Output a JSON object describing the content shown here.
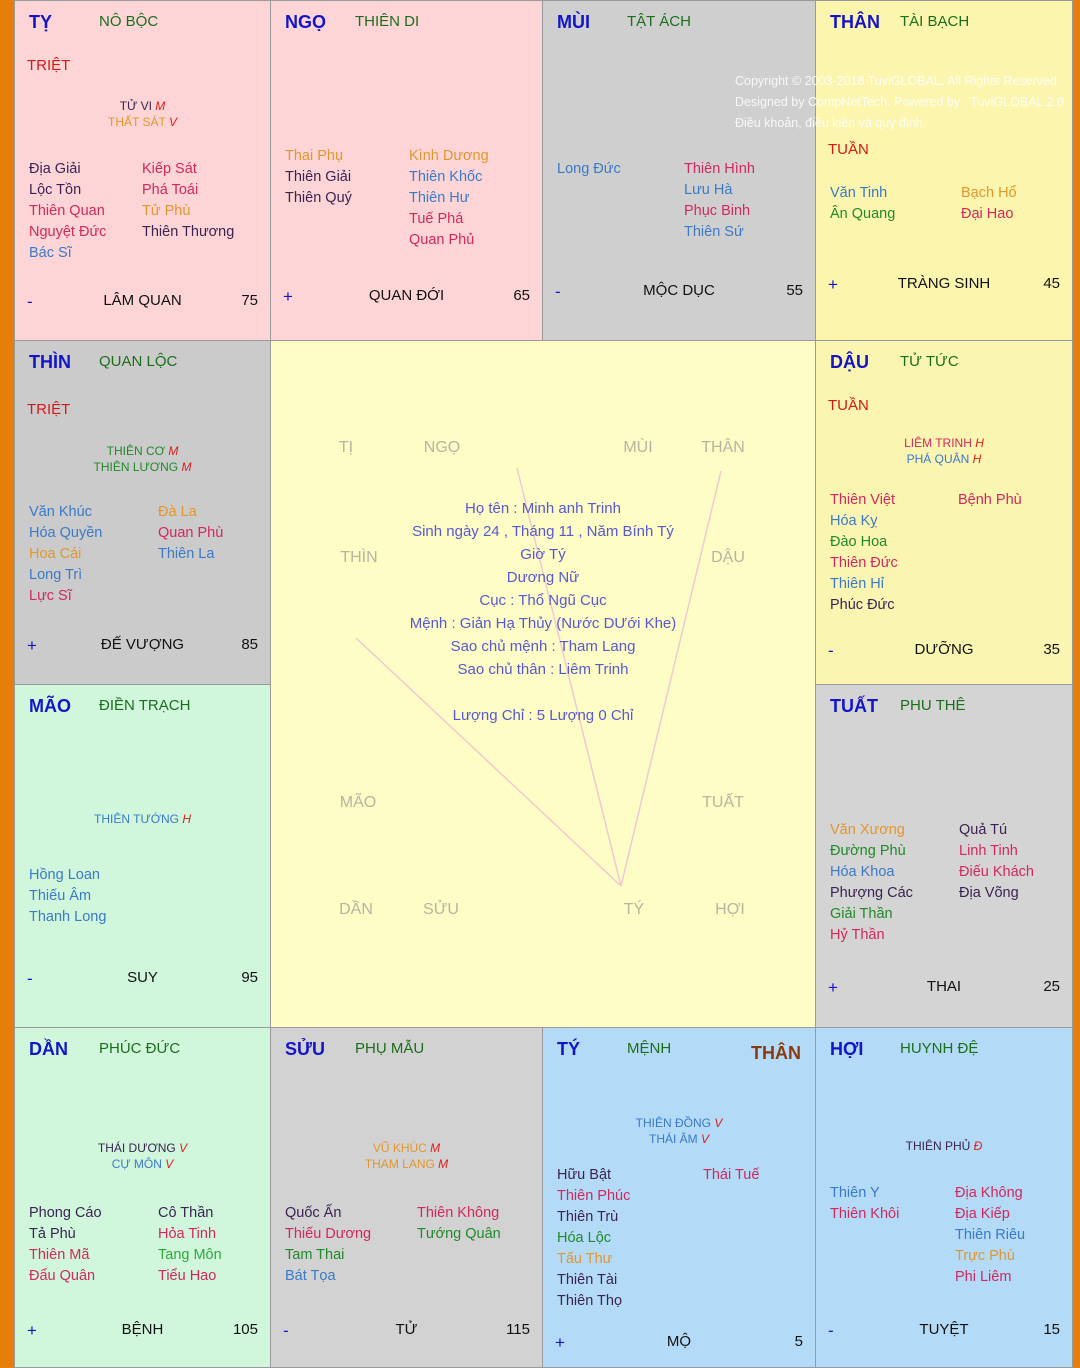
{
  "palette": {
    "k": "#3b2352",
    "r": "#d2285e",
    "o": "#e0972e",
    "b": "#3a7ac8",
    "g": "#1f8a2a",
    "lg": "#2fa83a"
  },
  "cells": [
    {
      "id": "ty-snake",
      "branch": "TỴ",
      "palace": "NÔ BỘC",
      "tag": "TRIỆT",
      "major": [
        {
          "name": "TỬ VI",
          "q": "M",
          "c": "k"
        },
        {
          "name": "THẤT SÁT",
          "q": "V",
          "c": "o"
        }
      ],
      "left": [
        {
          "name": "Địa Giải",
          "c": "k"
        },
        {
          "name": "Lộc Tồn",
          "c": "k"
        },
        {
          "name": "Thiên Quan",
          "c": "r"
        },
        {
          "name": "Nguyệt Đức",
          "c": "r"
        },
        {
          "name": "Bác Sĩ",
          "c": "b"
        }
      ],
      "right": [
        {
          "name": "Kiếp Sát",
          "c": "r"
        },
        {
          "name": "Phá Toái",
          "c": "r"
        },
        {
          "name": "Tử Phù",
          "c": "o"
        },
        {
          "name": "Thiên Thương",
          "c": "k"
        }
      ],
      "sign": "-",
      "stage": "LÂM QUAN",
      "num": "75"
    },
    {
      "id": "ngo",
      "branch": "NGỌ",
      "palace": "THIÊN DI",
      "major": [],
      "left": [
        {
          "name": "Thai Phụ",
          "c": "o"
        },
        {
          "name": "Thiên Giải",
          "c": "k"
        },
        {
          "name": "Thiên Quý",
          "c": "k"
        }
      ],
      "right": [
        {
          "name": "Kình Dương",
          "c": "o"
        },
        {
          "name": "Thiên Khốc",
          "c": "b"
        },
        {
          "name": "Thiên Hư",
          "c": "b"
        },
        {
          "name": "Tuế Phá",
          "c": "r"
        },
        {
          "name": "Quan Phủ",
          "c": "r"
        }
      ],
      "sign": "+",
      "stage": "QUAN ĐỚI",
      "num": "65"
    },
    {
      "id": "mui",
      "branch": "MÙI",
      "palace": "TẬT ÁCH",
      "major": [],
      "left": [
        {
          "name": "Long Đức",
          "c": "b"
        }
      ],
      "right": [
        {
          "name": "Thiên Hình",
          "c": "r"
        },
        {
          "name": "Lưu Hà",
          "c": "b"
        },
        {
          "name": "Phục Binh",
          "c": "r"
        },
        {
          "name": "Thiên Sứ",
          "c": "b"
        }
      ],
      "sign": "-",
      "stage": "MỘC DỤC",
      "num": "55"
    },
    {
      "id": "than",
      "branch": "THÂN",
      "palace": "TÀI BẠCH",
      "tag": "TUẦN",
      "major": [],
      "left": [
        {
          "name": "Văn Tinh",
          "c": "b"
        },
        {
          "name": "Ân Quang",
          "c": "g"
        }
      ],
      "right": [
        {
          "name": "Bạch Hổ",
          "c": "o"
        },
        {
          "name": "Đại Hao",
          "c": "r"
        }
      ],
      "sign": "+",
      "stage": "TRÀNG SINH",
      "num": "45"
    },
    {
      "id": "thin",
      "branch": "THÌN",
      "palace": "QUAN LỘC",
      "tag": "TRIỆT",
      "major": [
        {
          "name": "THIÊN CƠ",
          "q": "M",
          "c": "g"
        },
        {
          "name": "THIÊN LƯƠNG",
          "q": "M",
          "c": "g"
        }
      ],
      "left": [
        {
          "name": "Văn Khúc",
          "c": "b"
        },
        {
          "name": "Hóa Quyền",
          "c": "b"
        },
        {
          "name": "Hoa Cái",
          "c": "o"
        },
        {
          "name": "Long Trì",
          "c": "b"
        },
        {
          "name": "Lực Sĩ",
          "c": "r"
        }
      ],
      "right": [
        {
          "name": "Đà La",
          "c": "o"
        },
        {
          "name": "Quan Phù",
          "c": "r"
        },
        {
          "name": "Thiên La",
          "c": "b"
        }
      ],
      "sign": "+",
      "stage": "ĐẾ VƯỢNG",
      "num": "85"
    },
    {
      "id": "dau",
      "branch": "DẬU",
      "palace": "TỬ TỨC",
      "tag": "TUẦN",
      "major": [
        {
          "name": "LIÊM TRINH",
          "q": "H",
          "c": "r"
        },
        {
          "name": "PHÁ QUÂN",
          "q": "H",
          "c": "b"
        }
      ],
      "left": [
        {
          "name": "Thiên Việt",
          "c": "r"
        },
        {
          "name": "Hóa Kỵ",
          "c": "b"
        },
        {
          "name": "Đào Hoa",
          "c": "g"
        },
        {
          "name": "Thiên Đức",
          "c": "r"
        },
        {
          "name": "Thiên Hỉ",
          "c": "b"
        },
        {
          "name": "Phúc Đức",
          "c": "k"
        }
      ],
      "right": [
        {
          "name": "Bệnh Phù",
          "c": "r"
        }
      ],
      "sign": "-",
      "stage": "DƯỠNG",
      "num": "35"
    },
    {
      "id": "mao",
      "branch": "MÃO",
      "palace": "ĐIỀN TRẠCH",
      "major": [
        {
          "name": "THIÊN TƯỚNG",
          "q": "H",
          "c": "b"
        }
      ],
      "left": [
        {
          "name": "Hồng Loan",
          "c": "b"
        },
        {
          "name": "Thiếu Âm",
          "c": "b"
        },
        {
          "name": "Thanh Long",
          "c": "b"
        }
      ],
      "right": [],
      "sign": "-",
      "stage": "SUY",
      "num": "95"
    },
    {
      "id": "tuat",
      "branch": "TUẤT",
      "palace": "PHU THÊ",
      "major": [],
      "left": [
        {
          "name": "Văn Xương",
          "c": "o"
        },
        {
          "name": "Đường Phù",
          "c": "g"
        },
        {
          "name": "Hóa Khoa",
          "c": "b"
        },
        {
          "name": "Phượng Các",
          "c": "k"
        },
        {
          "name": "Giải Thần",
          "c": "g"
        },
        {
          "name": "Hỷ Thần",
          "c": "r"
        }
      ],
      "right": [
        {
          "name": "Quả Tú",
          "c": "k"
        },
        {
          "name": "Linh Tinh",
          "c": "r"
        },
        {
          "name": "Điếu Khách",
          "c": "r"
        },
        {
          "name": "Địa Võng",
          "c": "k"
        }
      ],
      "sign": "+",
      "stage": "THAI",
      "num": "25"
    },
    {
      "id": "dan",
      "branch": "DẦN",
      "palace": "PHÚC ĐỨC",
      "major": [
        {
          "name": "THÁI DƯƠNG",
          "q": "V",
          "c": "k"
        },
        {
          "name": "CỰ MÔN",
          "q": "V",
          "c": "b"
        }
      ],
      "left": [
        {
          "name": "Phong Cáo",
          "c": "k"
        },
        {
          "name": "Tả Phù",
          "c": "k"
        },
        {
          "name": "Thiên Mã",
          "c": "r"
        },
        {
          "name": "Đẩu Quân",
          "c": "r"
        }
      ],
      "right": [
        {
          "name": "Cô Thần",
          "c": "k"
        },
        {
          "name": "Hỏa Tinh",
          "c": "r"
        },
        {
          "name": "Tang Môn",
          "c": "lg"
        },
        {
          "name": "Tiểu Hao",
          "c": "r"
        }
      ],
      "sign": "+",
      "stage": "BỆNH",
      "num": "105"
    },
    {
      "id": "suu",
      "branch": "SỬU",
      "palace": "PHỤ MẪU",
      "major": [
        {
          "name": "VŨ KHÚC",
          "q": "M",
          "c": "o"
        },
        {
          "name": "THAM LANG",
          "q": "M",
          "c": "o"
        }
      ],
      "left": [
        {
          "name": "Quốc Ấn",
          "c": "k"
        },
        {
          "name": "Thiếu Dương",
          "c": "r"
        },
        {
          "name": "Tam Thai",
          "c": "g"
        },
        {
          "name": "Bát Tọa",
          "c": "b"
        }
      ],
      "right": [
        {
          "name": "Thiên Không",
          "c": "r"
        },
        {
          "name": "Tướng Quân",
          "c": "g"
        }
      ],
      "sign": "-",
      "stage": "TỬ",
      "num": "115"
    },
    {
      "id": "ty-rat",
      "branch": "TÝ",
      "palace": "MỆNH",
      "extra": "THÂN",
      "major": [
        {
          "name": "THIÊN ĐỒNG",
          "q": "V",
          "c": "b"
        },
        {
          "name": "THÁI ÂM",
          "q": "V",
          "c": "b"
        }
      ],
      "left": [
        {
          "name": "Hữu Bật",
          "c": "k"
        },
        {
          "name": "Thiên Phúc",
          "c": "r"
        },
        {
          "name": "Thiên Trù",
          "c": "k"
        },
        {
          "name": "Hóa Lộc",
          "c": "g"
        },
        {
          "name": "Tấu Thư",
          "c": "o"
        },
        {
          "name": "Thiên Tài",
          "c": "k"
        },
        {
          "name": "Thiên Thọ",
          "c": "k"
        }
      ],
      "right": [
        {
          "name": "Thái Tuế",
          "c": "r"
        }
      ],
      "sign": "+",
      "stage": "MỘ",
      "num": "5"
    },
    {
      "id": "hoi",
      "branch": "HỢI",
      "palace": "HUYNH ĐỆ",
      "major": [
        {
          "name": "THIÊN PHỦ",
          "q": "Đ",
          "c": "k"
        }
      ],
      "left": [
        {
          "name": "Thiên Y",
          "c": "b"
        },
        {
          "name": "Thiên Khôi",
          "c": "r"
        }
      ],
      "right": [
        {
          "name": "Địa Không",
          "c": "r"
        },
        {
          "name": "Địa Kiếp",
          "c": "r"
        },
        {
          "name": "Thiên Riêu",
          "c": "b"
        },
        {
          "name": "Trực Phù",
          "c": "o"
        },
        {
          "name": "Phi Liêm",
          "c": "r"
        }
      ],
      "sign": "-",
      "stage": "TUYỆT",
      "num": "15"
    }
  ],
  "center": {
    "labels": [
      "TỊ",
      "NGỌ",
      "MÙI",
      "THÂN",
      "THÌN",
      "DẬU",
      "MÃO",
      "TUẤT",
      "DẦN",
      "SỬU",
      "TÝ",
      "HỢI"
    ],
    "info": [
      "Họ tên : Minh anh Trinh",
      "Sinh ngày 24 , Tháng 11 , Năm Bính Tý",
      "Giờ Tý",
      "Dương Nữ",
      "Cục : Thổ Ngũ Cục",
      "Mệnh : Giản Hạ Thủy (Nước DƯới Khe)",
      "Sao chủ mệnh : Tham Lang",
      "Sao chủ thân : Liêm Trinh"
    ],
    "luong_chi": "Lượng Chỉ : 5 Lượng 0 Chỉ"
  },
  "footer_overlay": {
    "copyright": "Copyright © 2003-2018 TuviGLOBAL. All Rights Reserved.",
    "designed": "Designed by CompNetTech. Powered by : TuviGLOBAL 2.0",
    "terms": "Điều khoản, điều kiện và quy định."
  }
}
